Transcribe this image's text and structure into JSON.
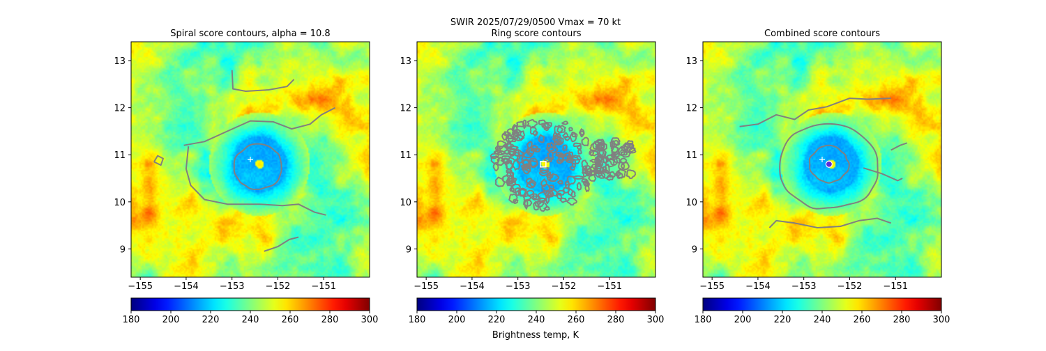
{
  "suptitle_line1": "SWIR  2025/07/29/0500    Vmax = 70 kt",
  "colorbar_label": "Brightness temp, K",
  "chart_data": [
    {
      "type": "heatmap",
      "title": "Spiral score contours, alpha = 10.8",
      "xlim": [
        -155.2,
        -150.0
      ],
      "ylim": [
        8.4,
        13.4
      ],
      "xticks": [
        -155,
        -154,
        -153,
        -152,
        -151
      ],
      "yticks": [
        9,
        10,
        11,
        12,
        13
      ],
      "colorbar": {
        "min": 180,
        "max": 300,
        "ticks": [
          180,
          200,
          220,
          240,
          260,
          280,
          300
        ],
        "colormap": "jet_r"
      },
      "center_marker": {
        "lon": -152.6,
        "lat": 10.9
      },
      "eye": {
        "lon": -152.4,
        "lat": 10.8
      },
      "contours": "spiral"
    },
    {
      "type": "heatmap",
      "title": "Ring score contours",
      "xlim": [
        -155.2,
        -150.0
      ],
      "ylim": [
        8.4,
        13.4
      ],
      "xticks": [
        -155,
        -154,
        -153,
        -152,
        -151
      ],
      "yticks": [
        9,
        10,
        11,
        12,
        13
      ],
      "colorbar": {
        "min": 180,
        "max": 300,
        "ticks": [
          180,
          200,
          220,
          240,
          260,
          280,
          300
        ],
        "colormap": "jet_r"
      },
      "center_marker": {
        "lon": -152.45,
        "lat": 10.8
      },
      "eye": {
        "lon": -152.4,
        "lat": 10.8
      },
      "contours": "ring"
    },
    {
      "type": "heatmap",
      "title": "Combined score contours",
      "xlim": [
        -155.2,
        -150.0
      ],
      "ylim": [
        8.4,
        13.4
      ],
      "xticks": [
        -155,
        -154,
        -153,
        -152,
        -151
      ],
      "yticks": [
        9,
        10,
        11,
        12,
        13
      ],
      "colorbar": {
        "min": 180,
        "max": 300,
        "ticks": [
          180,
          200,
          220,
          240,
          260,
          280,
          300
        ],
        "colormap": "jet_r"
      },
      "center_marker": {
        "lon": -152.6,
        "lat": 10.9
      },
      "best_marker": {
        "lon": -152.45,
        "lat": 10.8
      },
      "eye": {
        "lon": -152.4,
        "lat": 10.8
      },
      "contours": "combined"
    }
  ]
}
